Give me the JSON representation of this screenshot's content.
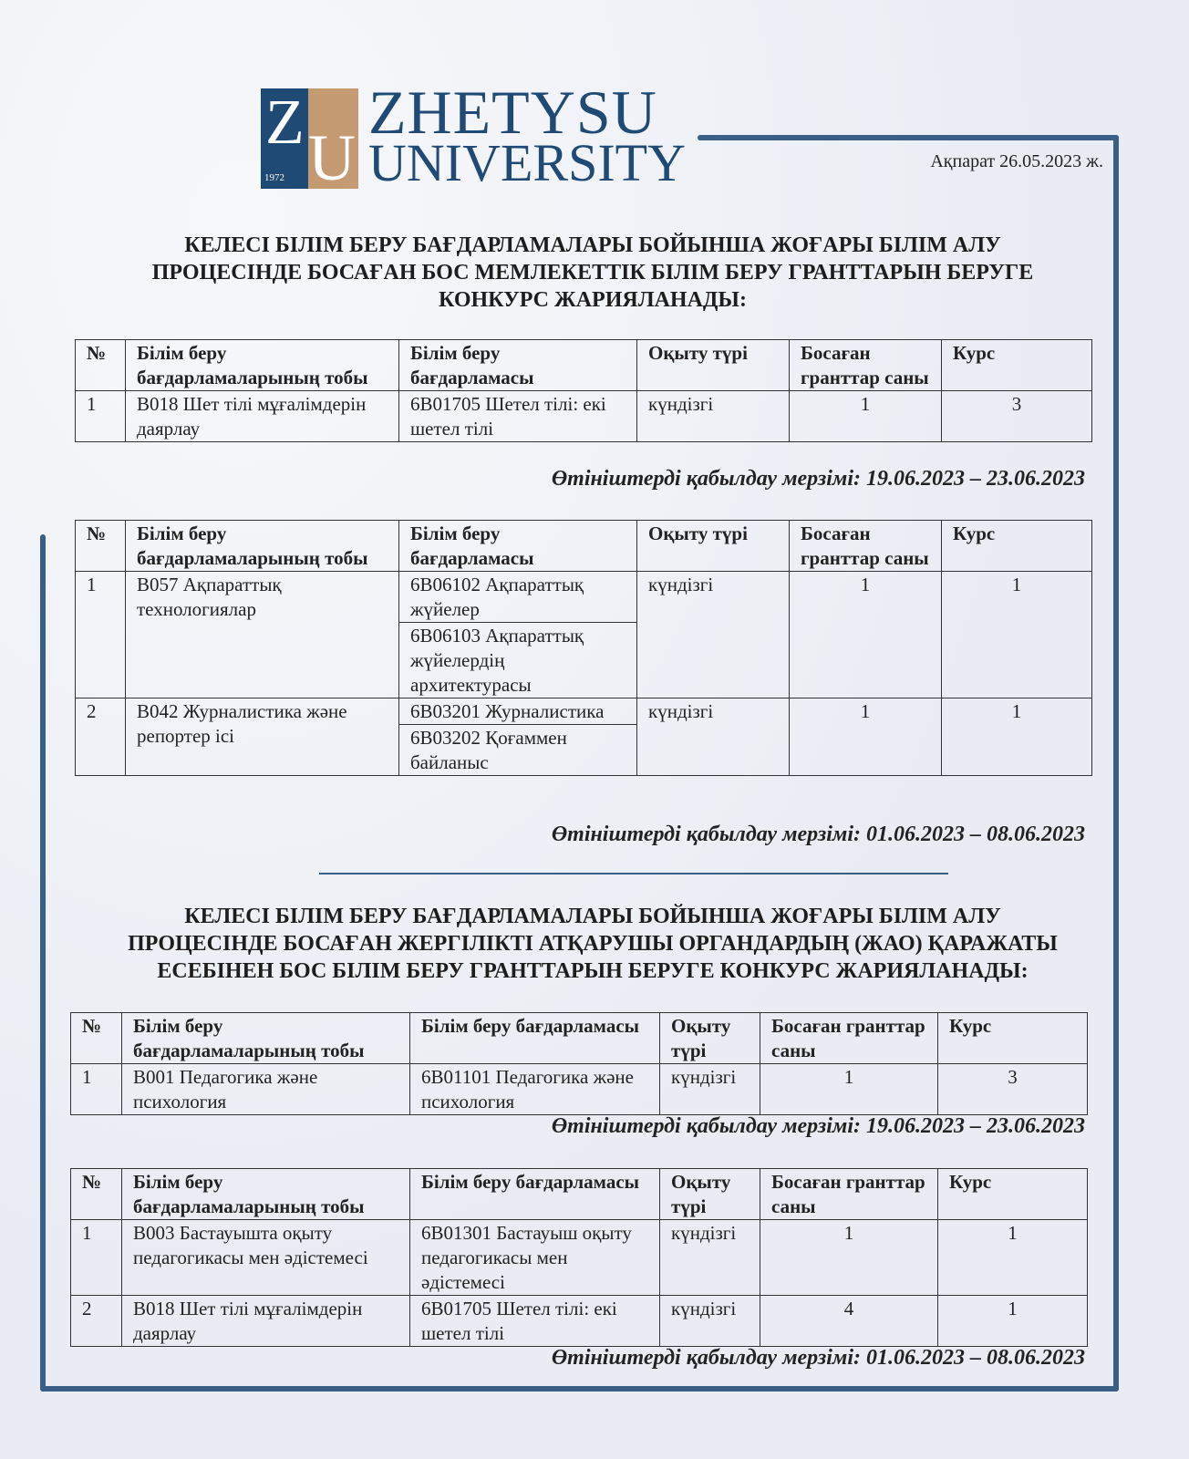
{
  "logo": {
    "letter_z": "Z",
    "letter_u": "U",
    "year": "1972",
    "line1": "ZHETYSU",
    "line2": "UNIVERSITY"
  },
  "date": "Ақпарат 26.05.2023 ж.",
  "heading1": [
    "КЕЛЕСІ БІЛІМ БЕРУ БАҒДАРЛАМАЛАРЫ БОЙЫНША ЖОҒАРЫ БІЛІМ АЛУ",
    "ПРОЦЕСІНДЕ БОСАҒАН БОС МЕМЛЕКЕТТІК БІЛІМ БЕРУ ГРАНТТАРЫН БЕРУГЕ",
    "КОНКУРС ЖАРИЯЛАНАДЫ:"
  ],
  "heading2": [
    "КЕЛЕСІ БІЛІМ БЕРУ БАҒДАРЛАМАЛАРЫ БОЙЫНША ЖОҒАРЫ БІЛІМ АЛУ",
    "ПРОЦЕСІНДЕ БОСАҒАН ЖЕРГІЛІКТІ АТҚАРУШЫ ОРГАНДАРДЫҢ (ЖАО) ҚАРАЖАТЫ",
    "ЕСЕБІНЕН БОС БІЛІМ БЕРУ ГРАНТТАРЫН БЕРУГЕ КОНКУРС ЖАРИЯЛАНАДЫ:"
  ],
  "headers": [
    "№",
    "Білім беру бағдарламаларының тобы",
    "Білім беру бағдарламасы",
    "Оқыту түрі",
    "Босаған гранттар саны",
    "Курс"
  ],
  "tables": [
    {
      "rows": [
        {
          "no": "1",
          "group": "В018 Шет тілі мұғалімдерін даярлау",
          "programs": [
            "6В01705  Шетел тілі: екі шетел тілі"
          ],
          "type": "күндізгі",
          "grants": "1",
          "course": "3"
        }
      ],
      "deadline": "Өтініштерді қабылдау мерзімі: 19.06.2023 – 23.06.2023"
    },
    {
      "rows": [
        {
          "no": "1",
          "group": "В057 Ақпараттық технологиялар",
          "programs": [
            "6В06102 Ақпараттық жүйелер",
            "6В06103 Ақпараттық жүйелердің архитектурасы"
          ],
          "type": "күндізгі",
          "grants": "1",
          "course": "1"
        },
        {
          "no": "2",
          "group": "В042 Журналистика және репортер ісі",
          "programs": [
            "6В03201 Журналистика",
            "6В03202 Қоғаммен байланыс"
          ],
          "type": "күндізгі",
          "grants": "1",
          "course": "1"
        }
      ],
      "deadline": "Өтініштерді қабылдау мерзімі: 01.06.2023 – 08.06.2023"
    },
    {
      "rows": [
        {
          "no": "1",
          "group": "В001 Педагогика және психология",
          "programs": [
            "6В01101  Педагогика және психология"
          ],
          "type": "күндізгі",
          "grants": "1",
          "course": "3"
        }
      ],
      "deadline": "Өтініштерді қабылдау мерзімі: 19.06.2023 – 23.06.2023"
    },
    {
      "rows": [
        {
          "no": "1",
          "group": "В003 Бастауышта оқыту педагогикасы мен әдістемесі",
          "programs": [
            "6В01301 Бастауыш оқыту педагогикасы мен әдістемесі"
          ],
          "type": "күндізгі",
          "grants": "1",
          "course": "1"
        },
        {
          "no": "2",
          "group": "В018 Шет тілі мұғалімдерін даярлау",
          "programs": [
            "6В01705  Шетел тілі: екі шетел тілі"
          ],
          "type": "күндізгі",
          "grants": "4",
          "course": "1"
        }
      ],
      "deadline": "Өтініштерді қабылдау мерзімі: 01.06.2023 – 08.06.2023"
    }
  ],
  "colors": {
    "frame": "#3a5f86",
    "logo_blue": "#1f4a75",
    "logo_gold": "#c49a72"
  }
}
